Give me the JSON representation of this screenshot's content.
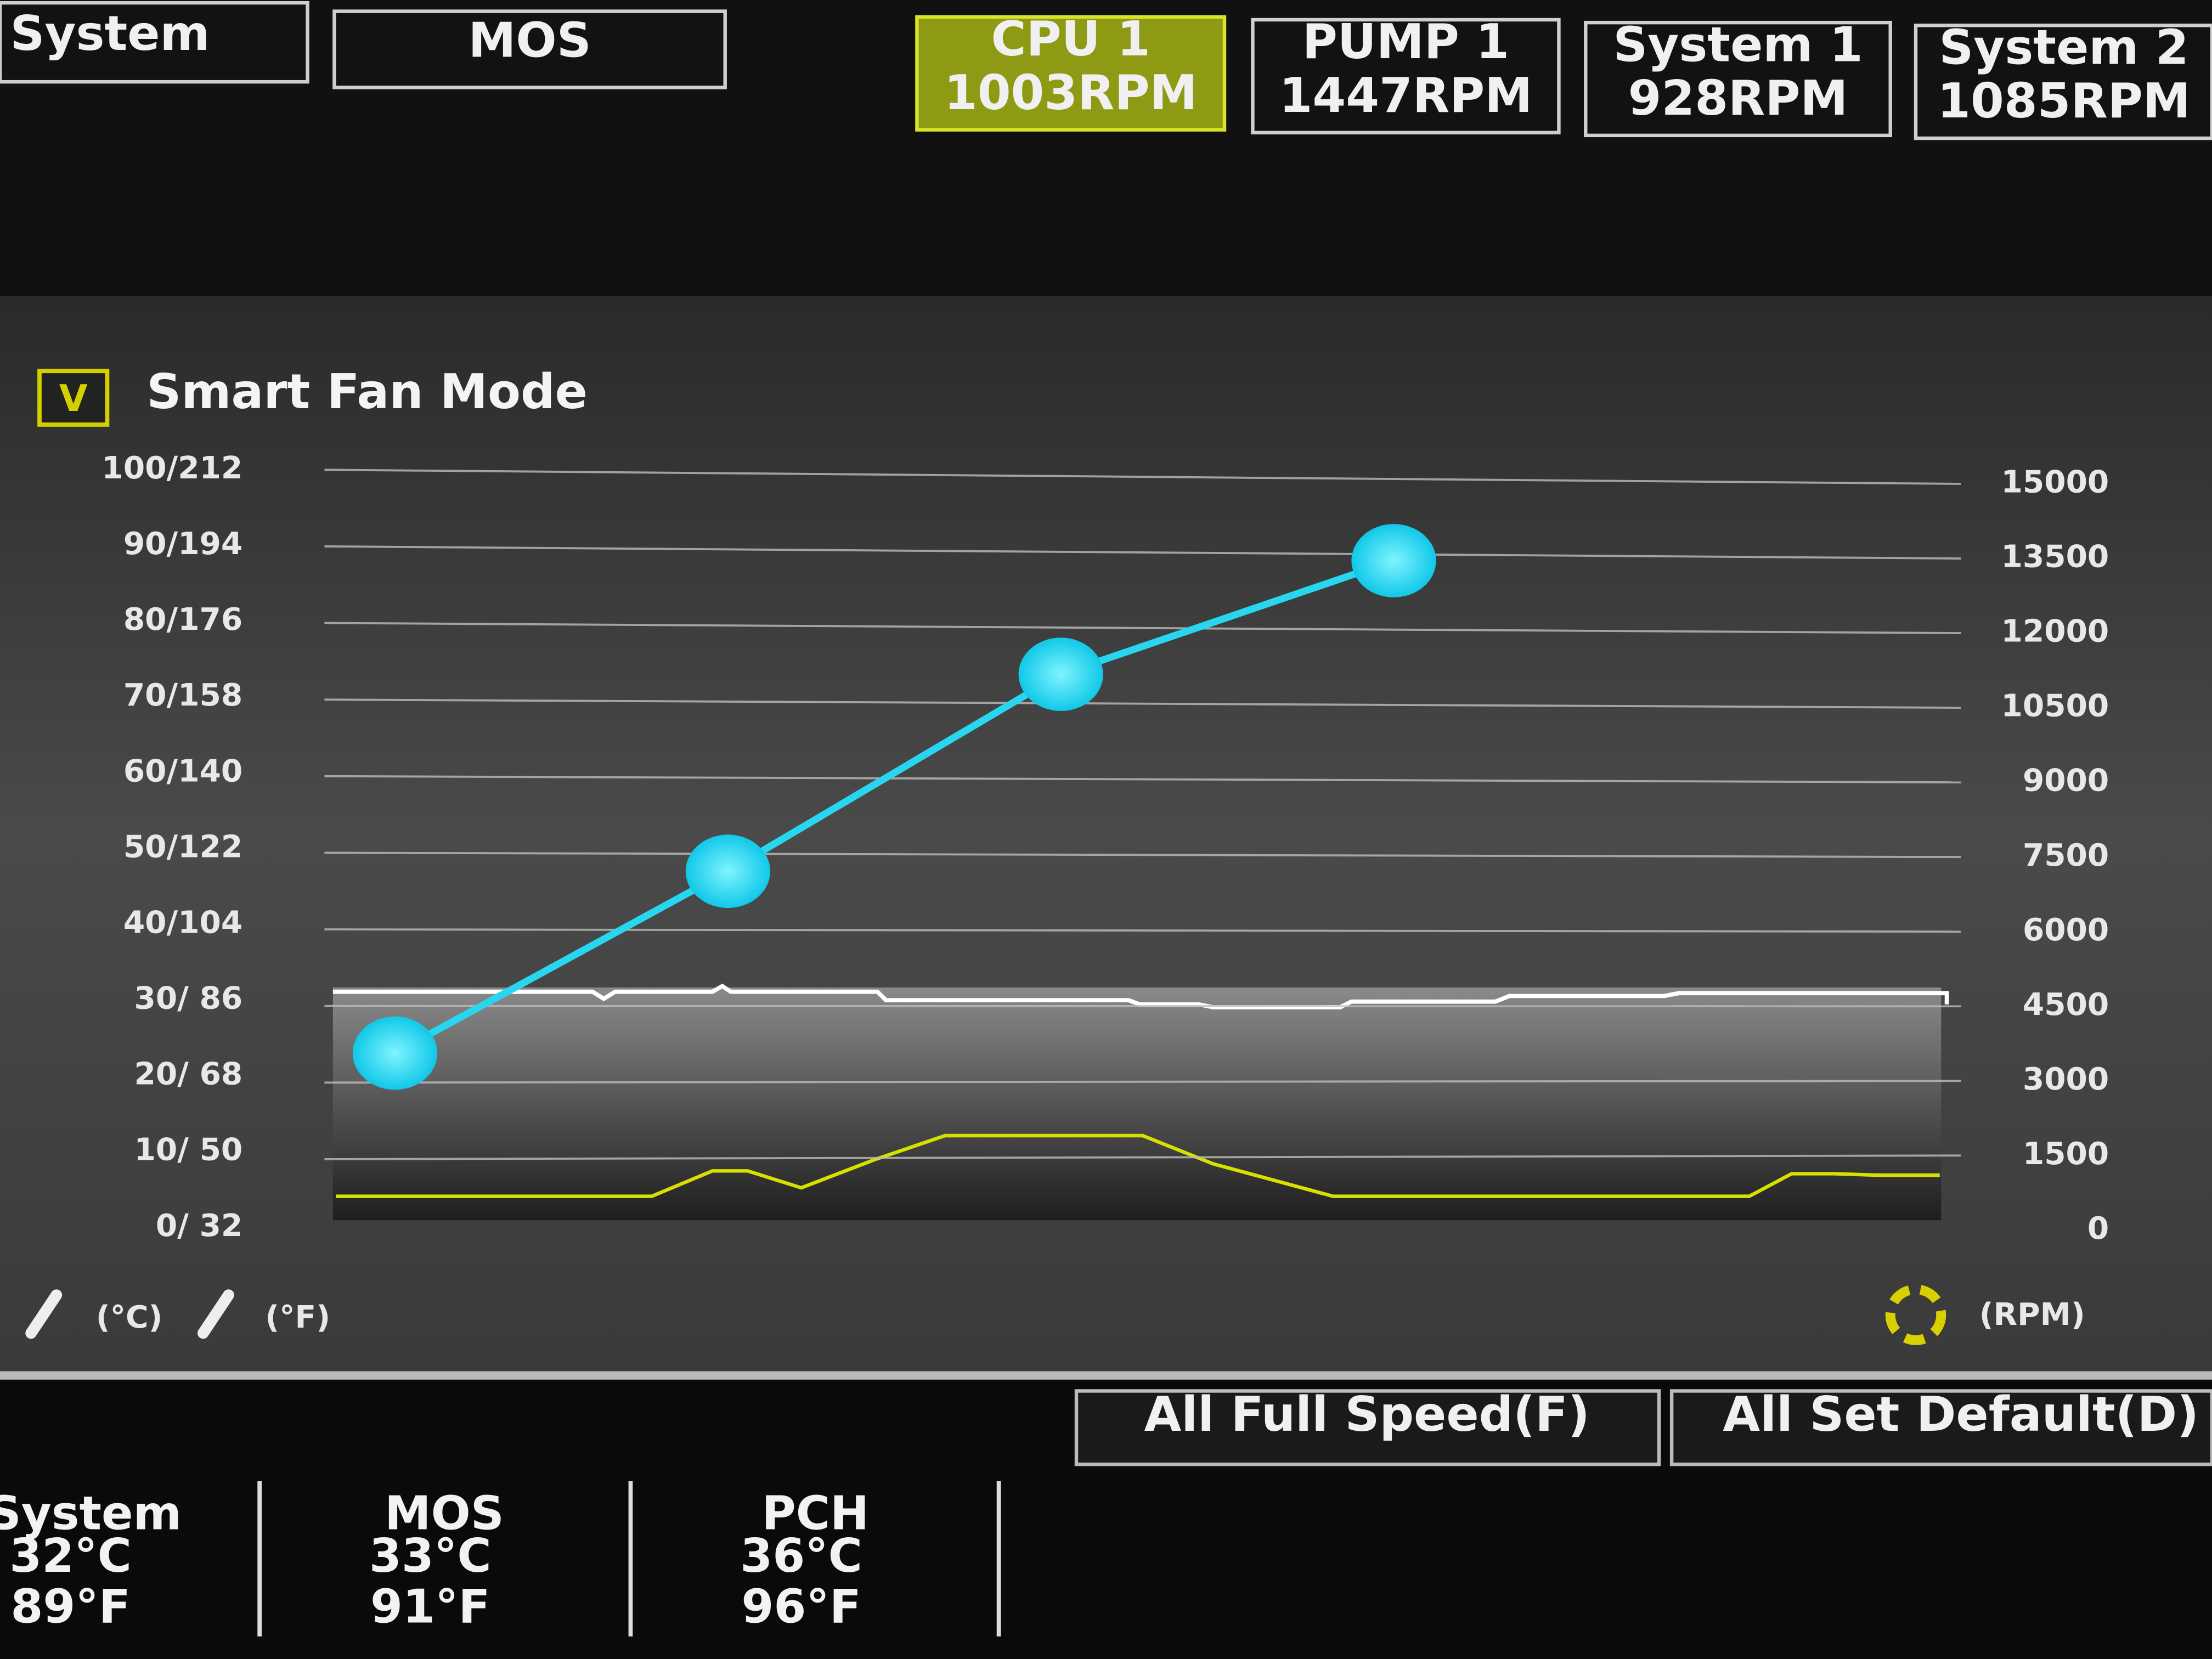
{
  "top_tabs": [
    "System",
    "MOS"
  ],
  "fan_tabs": [
    {
      "name": "CPU 1",
      "speed": "1003RPM"
    },
    {
      "name": "PUMP 1",
      "speed": "1447RPM"
    },
    {
      "name": "System 1",
      "speed": "928RPM"
    },
    {
      "name": "System 2",
      "speed": "1085RPM"
    }
  ],
  "panel": {
    "checkbox": "V",
    "title": "Smart Fan Mode",
    "left_axis": [
      "100/212",
      "90/194",
      "80/176",
      "70/158",
      "60/140",
      "50/122",
      "40/104",
      "30/ 86",
      "20/ 68",
      "10/ 50",
      "0/ 32"
    ],
    "right_axis": [
      15000,
      13500,
      12000,
      10500,
      9000,
      7500,
      6000,
      4500,
      3000,
      1500,
      0
    ],
    "curve_points": [
      23,
      47,
      73,
      88
    ],
    "unit_c": "(°C)",
    "unit_f": "(°F)",
    "unit_rpm": "(RPM)"
  },
  "buttons": [
    "All Full Speed(F)",
    "All Set Default(D)"
  ],
  "sensors": [
    {
      "name": "System",
      "c": "32°C",
      "f": "89°F"
    },
    {
      "name": "MOS",
      "c": "33°C",
      "f": "91°F"
    },
    {
      "name": "PCH",
      "c": "36°C",
      "f": "96°F"
    }
  ]
}
